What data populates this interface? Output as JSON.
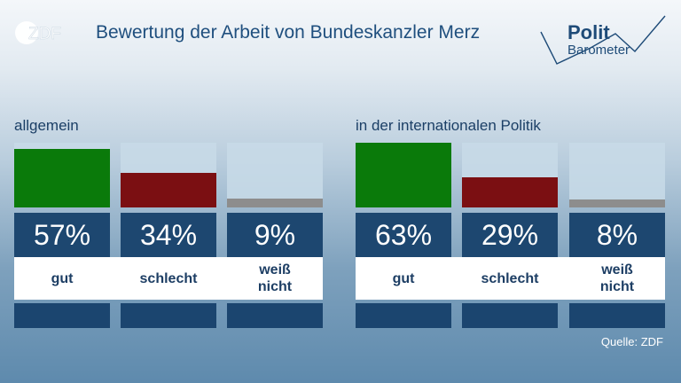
{
  "logo": {
    "zdf": "ZDF",
    "pb_line1": "Polit",
    "pb_line2": "Barometer"
  },
  "title": "Bewertung der Arbeit von Bundeskanzler Merz",
  "source": "Quelle: ZDF",
  "colors": {
    "gut": "#0a7a0a",
    "schlecht": "#7b0f12",
    "weiss_nicht": "#8d8d8d",
    "value_bg": "#1d4770",
    "title": "#1f4f7e"
  },
  "chart_data": [
    {
      "type": "bar",
      "title": "allgemein",
      "categories": [
        "gut",
        "schlecht",
        "weiß\nnicht"
      ],
      "values": [
        57,
        34,
        9
      ],
      "value_labels": [
        "57%",
        "34%",
        "9%"
      ],
      "ylim": [
        0,
        63
      ]
    },
    {
      "type": "bar",
      "title": "in der internationalen Politik",
      "categories": [
        "gut",
        "schlecht",
        "weiß\nnicht"
      ],
      "values": [
        63,
        29,
        8
      ],
      "value_labels": [
        "63%",
        "29%",
        "8%"
      ],
      "ylim": [
        0,
        63
      ]
    }
  ]
}
